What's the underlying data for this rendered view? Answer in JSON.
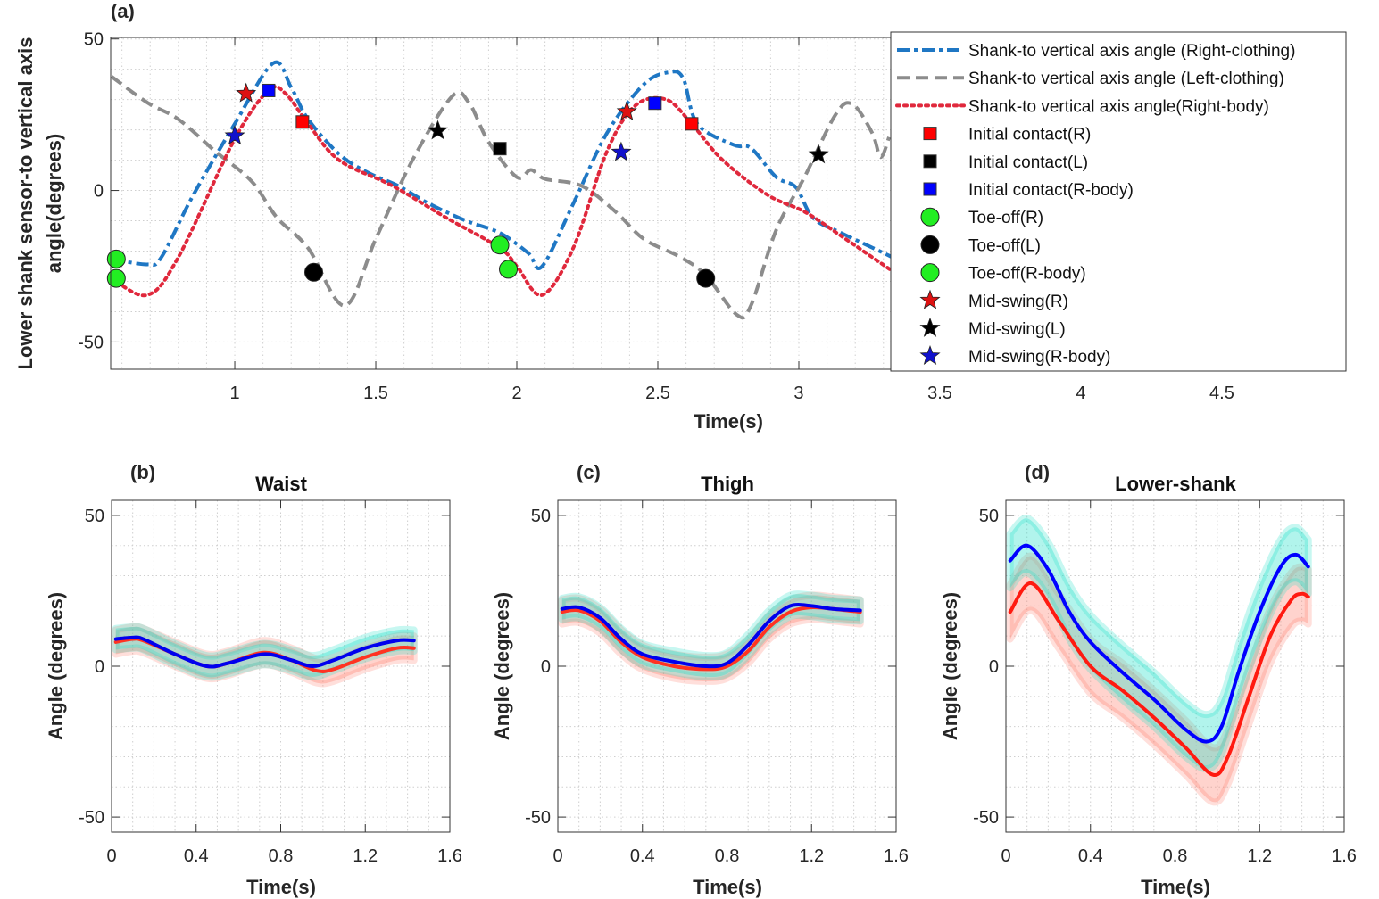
{
  "chart_data": [
    {
      "panel_label": "(a)",
      "type": "line",
      "xlabel": "Time(s)",
      "ylabel": [
        "Lower shank sensor-to vertical axis",
        "angle(degrees)"
      ],
      "xlim": [
        0.56,
        4.94
      ],
      "ylim": [
        -59,
        50.5
      ],
      "xticks": [
        1,
        1.5,
        2,
        2.5,
        3,
        3.5,
        4,
        4.5
      ],
      "xtick_labels": [
        "1",
        "1.5",
        "2",
        "2.5",
        "3",
        "3.5",
        "4",
        "4.5"
      ],
      "yticks": [
        -50,
        0,
        50
      ],
      "ytick_labels": [
        "-50",
        "0",
        "50"
      ],
      "grid": "minor dotted",
      "legend_position": "top-right",
      "series": [
        {
          "name": "Shank-to vertical axis angle (Right-clothing)",
          "color": "#1f77c4",
          "style": "dashdot",
          "x": [
            0.563,
            0.69,
            0.74,
            0.85,
            1.0,
            1.136,
            1.2,
            1.26,
            1.37,
            1.47,
            1.58,
            1.69,
            1.82,
            1.94,
            2.04,
            2.09,
            2.2,
            2.32,
            2.45,
            2.54,
            2.59,
            2.64,
            2.77,
            2.83,
            2.92,
            2.99,
            3.05,
            3.15,
            3.3,
            3.33
          ],
          "y": [
            -22.6,
            -24.4,
            -22,
            -2,
            22,
            42,
            34,
            23.5,
            12,
            6,
            1.5,
            -4.4,
            -10,
            -14,
            -20.6,
            -25,
            -4.4,
            19,
            35,
            39,
            37,
            22,
            15,
            14,
            4.4,
            1,
            -9,
            -14,
            -20.6,
            -22
          ]
        },
        {
          "name": "Shank-to vertical axis angle (Left-clothing)",
          "color": "#8c8c8c",
          "style": "dashed",
          "x": [
            0.563,
            0.69,
            0.8,
            0.93,
            1.06,
            1.15,
            1.26,
            1.39,
            1.5,
            1.63,
            1.77,
            1.83,
            1.9,
            2.0,
            2.05,
            2.1,
            2.23,
            2.35,
            2.45,
            2.58,
            2.67,
            2.78,
            2.83,
            2.92,
            3.02,
            3.13,
            3.19,
            3.26,
            3.29,
            3.32
          ],
          "y": [
            37.6,
            29,
            23.5,
            13,
            3,
            -9,
            -19,
            -38,
            -16,
            10,
            31,
            29,
            16,
            4.4,
            6.8,
            3.8,
            1.5,
            -7,
            -16,
            -22,
            -28,
            -41,
            -38,
            -13,
            4.4,
            25,
            28.5,
            19,
            11,
            17.6
          ]
        },
        {
          "name": "Shank-to vertical axis angle(Right-body)",
          "color": "#e0283c",
          "style": "dotted",
          "x": [
            0.563,
            0.69,
            0.8,
            1.0,
            1.12,
            1.18,
            1.26,
            1.37,
            1.56,
            1.75,
            1.94,
            2.0,
            2.09,
            2.2,
            2.32,
            2.42,
            2.53,
            2.62,
            2.73,
            2.89,
            3.02,
            3.15,
            3.33
          ],
          "y": [
            -29,
            -34.5,
            -22,
            17,
            33,
            32,
            22,
            10,
            1.5,
            -9,
            -19,
            -25,
            -34.5,
            -19,
            13,
            28,
            30,
            22,
            10,
            -1.5,
            -7,
            -15,
            -26.5
          ]
        }
      ],
      "events": [
        {
          "name": "Initial contact(R)",
          "marker": "square",
          "color": "#ff0000",
          "points": [
            [
              1.24,
              22.6
            ],
            [
              2.62,
              22
            ]
          ]
        },
        {
          "name": "Initial contact(L)",
          "marker": "square",
          "color": "#000000",
          "points": [
            [
              1.94,
              13.8
            ]
          ]
        },
        {
          "name": "Initial contact(R-body)",
          "marker": "square",
          "color": "#0000ff",
          "points": [
            [
              1.12,
              33
            ],
            [
              2.49,
              28.8
            ]
          ]
        },
        {
          "name": "Toe-off(R)",
          "marker": "circle",
          "color": "#22ee22",
          "points": [
            [
              0.58,
              -22.6
            ],
            [
              1.94,
              -18
            ]
          ]
        },
        {
          "name": "Toe-off(L)",
          "marker": "circle",
          "color": "#000000",
          "points": [
            [
              1.28,
              -27
            ],
            [
              2.67,
              -29
            ]
          ]
        },
        {
          "name": "Toe-off(R-body)",
          "marker": "circle",
          "color": "#22ee22",
          "points": [
            [
              0.58,
              -29
            ],
            [
              1.97,
              -26
            ]
          ]
        },
        {
          "name": "Mid-swing(R)",
          "marker": "star",
          "color": "#dd1111",
          "points": [
            [
              1.04,
              32
            ],
            [
              2.39,
              26
            ]
          ]
        },
        {
          "name": "Mid-swing(L)",
          "marker": "star",
          "color": "#000000",
          "points": [
            [
              1.72,
              19.7
            ],
            [
              3.07,
              11.8
            ]
          ]
        },
        {
          "name": "Mid-swing(R-body)",
          "marker": "star",
          "color": "#1111cc",
          "points": [
            [
              1.0,
              18
            ],
            [
              2.37,
              12.6
            ]
          ]
        }
      ]
    },
    {
      "panel_label": "(b)",
      "title": "Waist",
      "type": "area",
      "xlabel": "Time(s)",
      "ylabel": "Angle (degrees)",
      "xlim": [
        0,
        1.6
      ],
      "ylim": [
        -55,
        55
      ],
      "xticks": [
        0,
        0.4,
        0.8,
        1.2,
        1.6
      ],
      "xtick_labels": [
        "0",
        "0.4",
        "0.8",
        "1.2",
        "1.6"
      ],
      "yticks": [
        -50,
        0,
        50
      ],
      "ytick_labels": [
        "-50",
        "0",
        "50"
      ],
      "grid": "minor dotted",
      "series": [
        {
          "color": "#ff3322",
          "band_color": "#ff8070",
          "band": 4,
          "x": [
            0.02,
            0.1,
            0.15,
            0.3,
            0.45,
            0.55,
            0.72,
            0.85,
            0.97,
            1.05,
            1.2,
            1.35,
            1.43
          ],
          "y": [
            8,
            9,
            8.5,
            4,
            0,
            1,
            4.5,
            2,
            -1.5,
            -1,
            3,
            6,
            6
          ]
        },
        {
          "color": "#0000ee",
          "band_color": "#20e0c8",
          "band": 3.5,
          "x": [
            0.02,
            0.1,
            0.15,
            0.3,
            0.45,
            0.55,
            0.72,
            0.85,
            0.95,
            1.05,
            1.2,
            1.35,
            1.43
          ],
          "y": [
            9,
            9.5,
            9,
            4,
            0,
            1,
            4,
            2,
            0,
            2,
            6,
            8.5,
            8.5
          ]
        }
      ]
    },
    {
      "panel_label": "(c)",
      "title": "Thigh",
      "type": "area",
      "xlabel": "Time(s)",
      "ylabel": "Angle (degrees)",
      "xlim": [
        0,
        1.6
      ],
      "ylim": [
        -55,
        55
      ],
      "xticks": [
        0,
        0.4,
        0.8,
        1.2,
        1.6
      ],
      "xtick_labels": [
        "0",
        "0.4",
        "0.8",
        "1.2",
        "1.6"
      ],
      "yticks": [
        -50,
        0,
        50
      ],
      "ytick_labels": [
        "-50",
        "0",
        "50"
      ],
      "grid": "minor dotted",
      "series": [
        {
          "color": "#ff3322",
          "band_color": "#ff8070",
          "band": 4,
          "x": [
            0.02,
            0.1,
            0.2,
            0.3,
            0.4,
            0.55,
            0.7,
            0.8,
            0.9,
            1.0,
            1.1,
            1.2,
            1.3,
            1.43
          ],
          "y": [
            18,
            18.5,
            15,
            8,
            3,
            0,
            -1,
            0,
            5,
            13,
            18,
            19.5,
            19,
            18
          ]
        },
        {
          "color": "#0000ee",
          "band_color": "#20e0c8",
          "band": 3.5,
          "x": [
            0.02,
            0.1,
            0.2,
            0.3,
            0.4,
            0.55,
            0.7,
            0.8,
            0.9,
            1.0,
            1.1,
            1.2,
            1.3,
            1.43
          ],
          "y": [
            19,
            19.5,
            16,
            9,
            4,
            1.5,
            0,
            1,
            7,
            15,
            20,
            20,
            19,
            18.5
          ]
        }
      ]
    },
    {
      "panel_label": "(d)",
      "title": "Lower-shank",
      "type": "area",
      "xlabel": "Time(s)",
      "ylabel": "Angle (degrees)",
      "xlim": [
        0,
        1.6
      ],
      "ylim": [
        -55,
        55
      ],
      "xticks": [
        0,
        0.4,
        0.8,
        1.2,
        1.6
      ],
      "xtick_labels": [
        "0",
        "0.4",
        "0.8",
        "1.2",
        "1.6"
      ],
      "yticks": [
        -50,
        0,
        50
      ],
      "ytick_labels": [
        "-50",
        "0",
        "50"
      ],
      "grid": "minor dotted",
      "series": [
        {
          "color": "#ff1a10",
          "band_color": "#ff8070",
          "band": 9,
          "x": [
            0.02,
            0.12,
            0.25,
            0.4,
            0.55,
            0.7,
            0.85,
            0.98,
            1.05,
            1.15,
            1.25,
            1.35,
            1.4,
            1.43
          ],
          "y": [
            18,
            27.5,
            15,
            0,
            -8,
            -17,
            -27,
            -36,
            -30,
            -10,
            10,
            22,
            24,
            23
          ]
        },
        {
          "color": "#0000ff",
          "band_color": "#20e0c8",
          "band": 9,
          "x": [
            0.02,
            0.1,
            0.2,
            0.3,
            0.4,
            0.55,
            0.7,
            0.85,
            0.95,
            1.02,
            1.1,
            1.2,
            1.3,
            1.37,
            1.43
          ],
          "y": [
            35,
            40,
            32,
            18,
            8,
            -2,
            -11,
            -21,
            -25,
            -20,
            -2,
            18,
            33,
            37,
            33
          ]
        }
      ]
    }
  ]
}
